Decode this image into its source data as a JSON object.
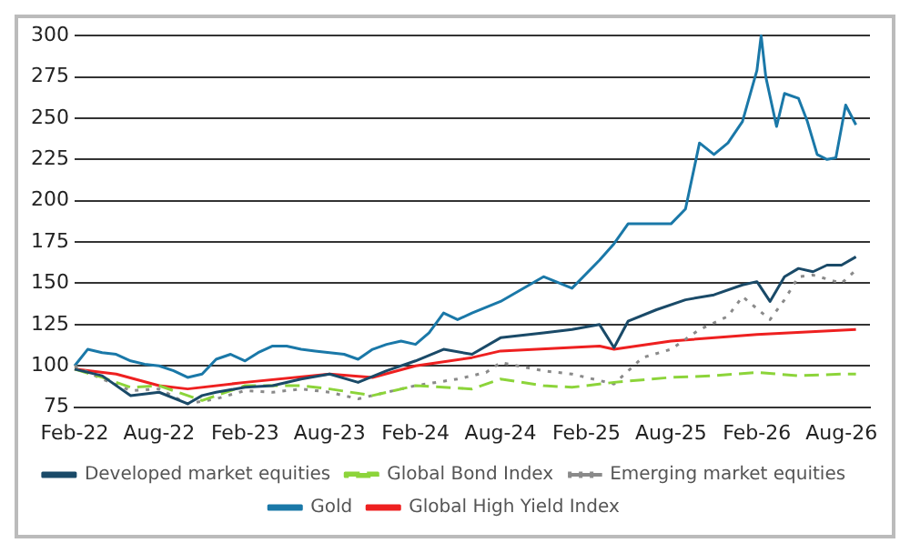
{
  "chart_data": {
    "type": "line",
    "legend": "bottom",
    "grid": "y",
    "xlim": [
      "2022-02",
      "2026-10"
    ],
    "ylim": [
      75,
      300
    ],
    "yticks": [
      75,
      100,
      125,
      150,
      175,
      200,
      225,
      250,
      275,
      300
    ],
    "xticks": [
      {
        "value": "2022-02",
        "label": "Feb-22"
      },
      {
        "value": "2022-08",
        "label": "Aug-22"
      },
      {
        "value": "2023-02",
        "label": "Feb-23"
      },
      {
        "value": "2023-08",
        "label": "Aug-23"
      },
      {
        "value": "2024-02",
        "label": "Feb-24"
      },
      {
        "value": "2024-08",
        "label": "Aug-24"
      },
      {
        "value": "2025-02",
        "label": "Feb-25"
      },
      {
        "value": "2025-08",
        "label": "Aug-25"
      },
      {
        "value": "2026-02",
        "label": "Feb-26"
      },
      {
        "value": "2026-08",
        "label": "Aug-26"
      }
    ],
    "series": [
      {
        "name": "Developed market equities",
        "color": "#1a4a68",
        "line_style": "solid",
        "x": [
          "2022-02",
          "2022-04",
          "2022-06",
          "2022-08",
          "2022-10",
          "2022-11",
          "2022-12",
          "2023-02",
          "2023-04",
          "2023-06",
          "2023-08",
          "2023-10",
          "2023-12",
          "2024-02",
          "2024-04",
          "2024-06",
          "2024-08",
          "2024-11",
          "2025-01",
          "2025-03",
          "2025-04",
          "2025-05",
          "2025-07",
          "2025-09",
          "2025-11",
          "2026-01",
          "2026-02",
          "2026-03",
          "2026-04",
          "2026-05",
          "2026-06",
          "2026-07",
          "2026-08",
          "2026-09"
        ],
        "values": [
          98,
          94,
          82,
          84,
          77,
          82,
          84,
          87,
          88,
          92,
          95,
          90,
          97,
          103,
          110,
          107,
          117,
          120,
          122,
          125,
          111,
          127,
          134,
          140,
          143,
          149,
          151,
          139,
          154,
          159,
          157,
          161,
          161,
          166
        ]
      },
      {
        "name": "Global Bond Index",
        "color": "#8cd43a",
        "line_style": "dashed",
        "x": [
          "2022-02",
          "2022-04",
          "2022-06",
          "2022-08",
          "2022-10",
          "2022-11",
          "2023-02",
          "2023-06",
          "2023-08",
          "2023-11",
          "2024-02",
          "2024-06",
          "2024-08",
          "2024-11",
          "2025-01",
          "2025-04",
          "2025-08",
          "2025-11",
          "2026-02",
          "2026-05",
          "2026-08",
          "2026-09"
        ],
        "values": [
          98,
          93,
          87,
          88,
          82,
          79,
          88,
          88,
          86,
          82,
          88,
          86,
          92,
          88,
          87,
          90,
          93,
          94,
          96,
          94,
          95,
          95
        ]
      },
      {
        "name": "Emerging market equities",
        "color": "#8a8a8a",
        "line_style": "dotted",
        "x": [
          "2022-02",
          "2022-04",
          "2022-06",
          "2022-08",
          "2022-10",
          "2022-12",
          "2023-02",
          "2023-04",
          "2023-06",
          "2023-08",
          "2023-10",
          "2023-12",
          "2024-02",
          "2024-05",
          "2024-07",
          "2024-08",
          "2024-11",
          "2025-01",
          "2025-04",
          "2025-06",
          "2025-08",
          "2025-10",
          "2025-12",
          "2026-01",
          "2026-03",
          "2026-04",
          "2026-05",
          "2026-06",
          "2026-08",
          "2026-09"
        ],
        "values": [
          100,
          92,
          85,
          86,
          77,
          80,
          85,
          84,
          86,
          84,
          80,
          84,
          88,
          92,
          96,
          102,
          97,
          95,
          89,
          105,
          110,
          122,
          130,
          142,
          128,
          140,
          154,
          155,
          150,
          158
        ]
      },
      {
        "name": "Gold",
        "color": "#1a78a8",
        "line_style": "solid",
        "x": [
          "2022-02",
          "2022-03",
          "2022-04",
          "2022-05",
          "2022-06",
          "2022-07",
          "2022-08",
          "2022-09",
          "2022-10",
          "2022-11",
          "2022-12",
          "2023-01",
          "2023-02",
          "2023-03",
          "2023-04",
          "2023-05",
          "2023-06",
          "2023-07",
          "2023-08",
          "2023-09",
          "2023-10",
          "2023-11",
          "2023-12",
          "2024-01",
          "2024-02",
          "2024-03",
          "2024-04",
          "2024-05",
          "2024-06",
          "2024-08",
          "2024-11",
          "2025-01",
          "2025-03",
          "2025-04",
          "2025-05",
          "2025-08",
          "2025-09",
          "2025-10",
          "2025-11",
          "2025-12",
          "2026-01",
          "2026-02",
          "2026-02-10",
          "2026-02-20",
          "2026-03-15",
          "2026-04",
          "2026-05",
          "2026-05-20",
          "2026-06-10",
          "2026-07",
          "2026-07-20",
          "2026-08-10",
          "2026-09"
        ],
        "values": [
          100,
          110,
          108,
          107,
          103,
          101,
          100,
          97,
          93,
          95,
          104,
          107,
          103,
          108,
          112,
          112,
          110,
          109,
          108,
          107,
          104,
          110,
          113,
          115,
          113,
          120,
          132,
          128,
          132,
          139,
          154,
          147,
          164,
          174,
          186,
          186,
          195,
          235,
          228,
          235,
          248,
          279,
          300,
          275,
          245,
          265,
          262,
          248,
          228,
          225,
          226,
          258,
          246
        ]
      },
      {
        "name": "Global High Yield Index",
        "color": "#ee2020",
        "line_style": "solid",
        "x": [
          "2022-02",
          "2022-05",
          "2022-08",
          "2022-10",
          "2023-02",
          "2023-08",
          "2023-11",
          "2024-02",
          "2024-06",
          "2024-08",
          "2025-03",
          "2025-04",
          "2025-08",
          "2026-02",
          "2026-09"
        ],
        "values": [
          98,
          95,
          88,
          86,
          90,
          95,
          93,
          100,
          105,
          109,
          112,
          110,
          115,
          119,
          122
        ]
      }
    ]
  }
}
